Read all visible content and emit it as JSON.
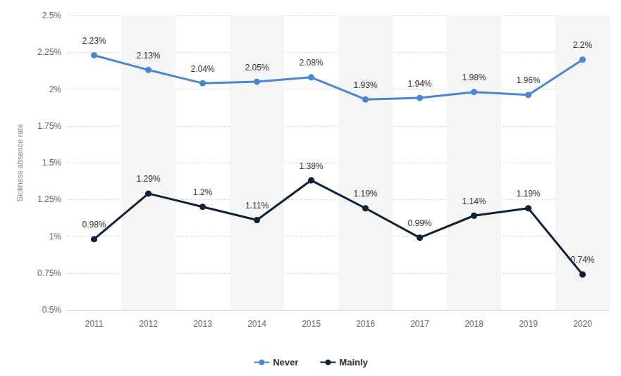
{
  "chart_data": {
    "type": "line",
    "y_label": "Sickness absence rate",
    "categories": [
      "2011",
      "2012",
      "2013",
      "2014",
      "2015",
      "2016",
      "2017",
      "2018",
      "2019",
      "2020"
    ],
    "series": [
      {
        "name": "Never",
        "color": "#4a86d4",
        "values": [
          2.23,
          2.13,
          2.04,
          2.05,
          2.08,
          1.93,
          1.94,
          1.98,
          1.96,
          2.2
        ],
        "value_labels": [
          "2.23%",
          "2.13%",
          "2.04%",
          "2.05%",
          "2.08%",
          "1.93%",
          "1.94%",
          "1.98%",
          "1.96%",
          "2.2%"
        ]
      },
      {
        "name": "Mainly",
        "color": "#0f2237",
        "values": [
          0.98,
          1.29,
          1.2,
          1.11,
          1.38,
          1.19,
          0.99,
          1.14,
          1.19,
          0.74
        ],
        "value_labels": [
          "0.98%",
          "1.29%",
          "1.2%",
          "1.11%",
          "1.38%",
          "1.19%",
          "0.99%",
          "1.14%",
          "1.19%",
          "0.74%"
        ]
      }
    ],
    "ylim": [
      0.5,
      2.5
    ],
    "yticks": [
      {
        "value": 0.5,
        "label": "0.5%"
      },
      {
        "value": 0.75,
        "label": "0.75%"
      },
      {
        "value": 1,
        "label": "1%"
      },
      {
        "value": 1.25,
        "label": "1.25%"
      },
      {
        "value": 1.5,
        "label": "1.5%"
      },
      {
        "value": 1.75,
        "label": "1.75%"
      },
      {
        "value": 2,
        "label": "2%"
      },
      {
        "value": 2.25,
        "label": "2.25%"
      },
      {
        "value": 2.5,
        "label": "2.5%"
      }
    ],
    "grid": true,
    "legend": "bottom",
    "data_labels": true,
    "marker": "circle"
  }
}
